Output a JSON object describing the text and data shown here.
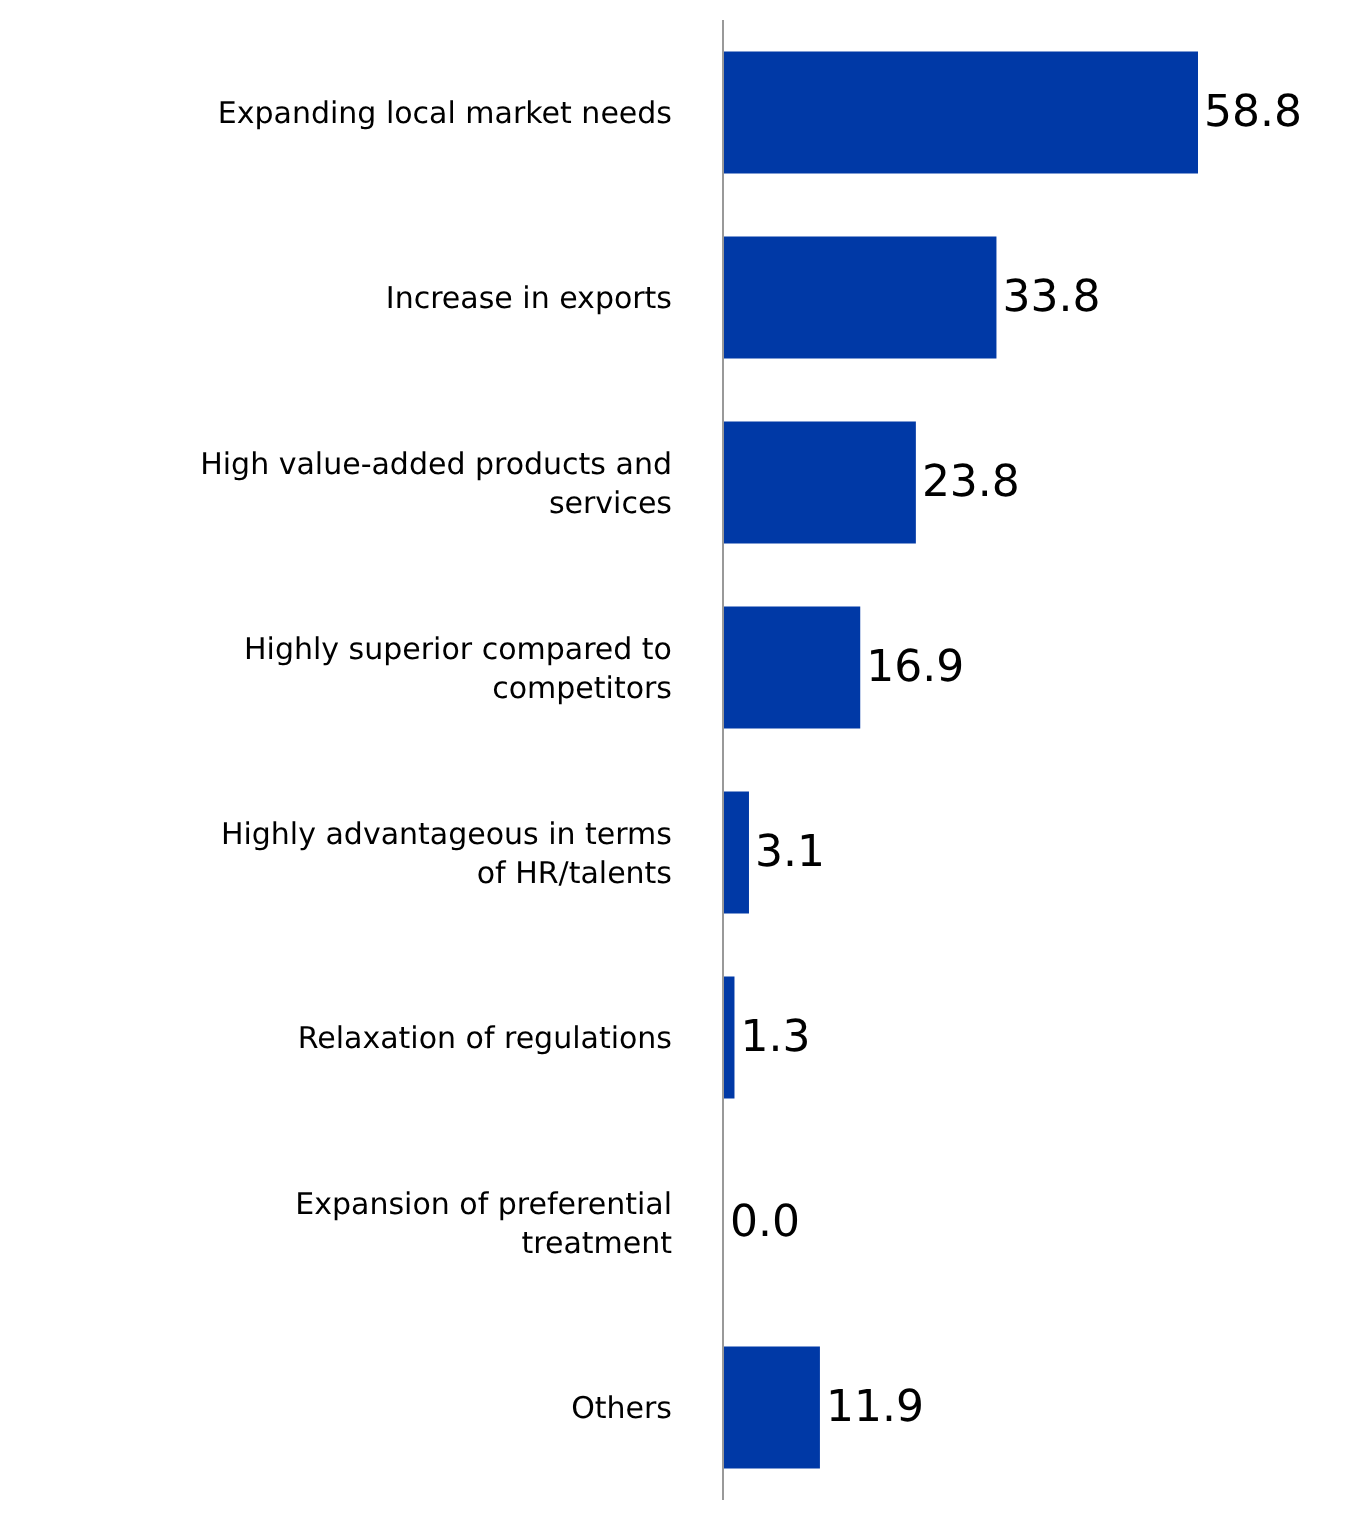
{
  "chart_data": {
    "type": "bar",
    "orientation": "horizontal",
    "categories": [
      "Expanding local market needs",
      "Increase in exports",
      "High value-added products and services",
      "Highly superior compared to competitors",
      "Highly advantageous in terms of HR/talents",
      "Relaxation of regulations",
      "Expansion of preferential treatment",
      "Others"
    ],
    "values": [
      58.8,
      33.8,
      23.8,
      16.9,
      3.1,
      1.3,
      0.0,
      11.9
    ],
    "value_labels": [
      "58.8",
      "33.8",
      "23.8",
      "16.9",
      "3.1",
      "1.3",
      "0.0",
      "11.9"
    ],
    "color": "#0039a6"
  }
}
